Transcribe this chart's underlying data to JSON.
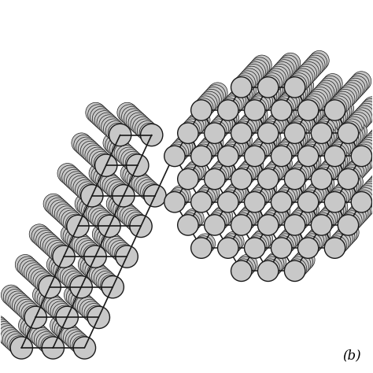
{
  "background_color": "#ffffff",
  "atom_color": "#c8c8c8",
  "atom_edge_color": "#1a1a1a",
  "bond_color": "#1a1a1a",
  "label": "(b)",
  "label_fontsize": 12,
  "fig_width": 4.74,
  "fig_height": 4.74,
  "dpi": 100
}
